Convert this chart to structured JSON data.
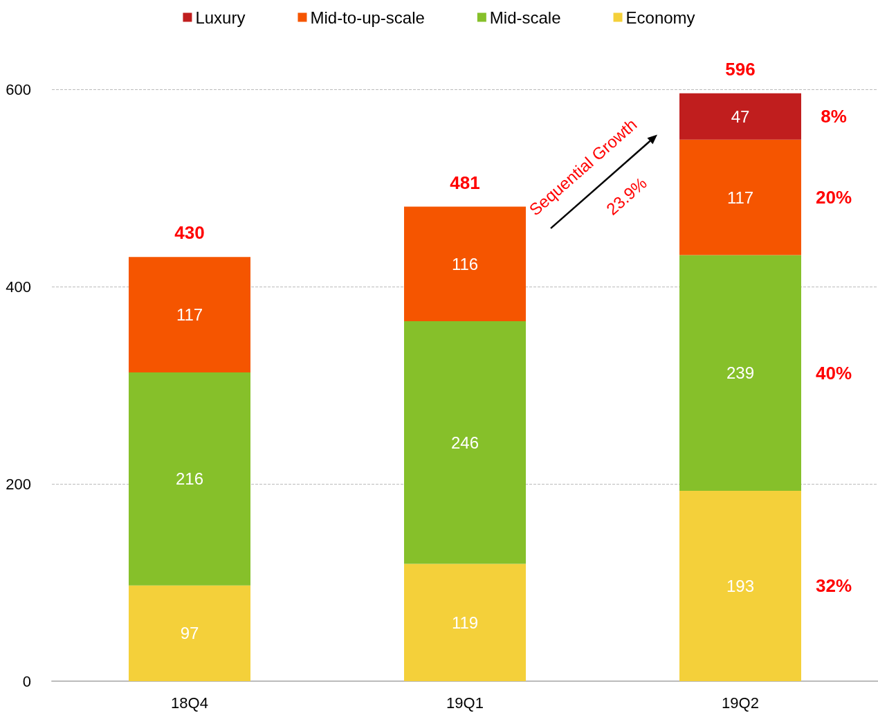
{
  "chart_data": {
    "type": "bar",
    "stacked": true,
    "categories": [
      "18Q4",
      "19Q1",
      "19Q2"
    ],
    "series": [
      {
        "name": "Economy",
        "color": "#f4d03a",
        "values": [
          97,
          119,
          193
        ]
      },
      {
        "name": "Mid-scale",
        "color": "#86c02a",
        "values": [
          216,
          246,
          239
        ]
      },
      {
        "name": "Mid-to-up-scale",
        "color": "#f55500",
        "values": [
          117,
          116,
          117
        ]
      },
      {
        "name": "Luxury",
        "color": "#c01e1e",
        "values": [
          null,
          null,
          47
        ]
      }
    ],
    "ylim": [
      0,
      600
    ],
    "yticks": [
      0,
      200,
      400,
      600
    ],
    "grid": "y",
    "legend": "top",
    "data_labels": true,
    "totals": [
      "430",
      "481",
      "596"
    ],
    "annotations": [
      "8%",
      "20%",
      "40%",
      "32%",
      "Sequential Growth",
      "23.9%"
    ]
  }
}
